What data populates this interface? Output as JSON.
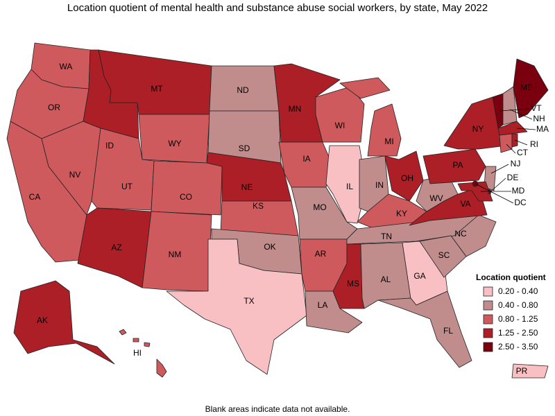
{
  "title": "Location quotient of mental health and substance abuse social workers, by state, May 2022",
  "states": [
    {
      "label": "WA",
      "class": 2
    },
    {
      "label": "OR",
      "class": 2
    },
    {
      "label": "CA",
      "class": 2
    },
    {
      "label": "NV",
      "class": 2
    },
    {
      "label": "ID",
      "class": 3
    },
    {
      "label": "MT",
      "class": 3
    },
    {
      "label": "WY",
      "class": 2
    },
    {
      "label": "UT",
      "class": 2
    },
    {
      "label": "CO",
      "class": 2
    },
    {
      "label": "AZ",
      "class": 3
    },
    {
      "label": "NM",
      "class": 2
    },
    {
      "label": "ND",
      "class": 1
    },
    {
      "label": "SD",
      "class": 1
    },
    {
      "label": "NE",
      "class": 3
    },
    {
      "label": "KS",
      "class": 2
    },
    {
      "label": "OK",
      "class": 1
    },
    {
      "label": "TX",
      "class": 0
    },
    {
      "label": "MN",
      "class": 3
    },
    {
      "label": "IA",
      "class": 2
    },
    {
      "label": "MO",
      "class": 1
    },
    {
      "label": "AR",
      "class": 2
    },
    {
      "label": "LA",
      "class": 1
    },
    {
      "label": "WI",
      "class": 2
    },
    {
      "label": "IL",
      "class": 0
    },
    {
      "label": "MI",
      "class": 2
    },
    {
      "label": "IN",
      "class": 1
    },
    {
      "label": "OH",
      "class": 3
    },
    {
      "label": "KY",
      "class": 2
    },
    {
      "label": "TN",
      "class": 1
    },
    {
      "label": "MS",
      "class": 3
    },
    {
      "label": "AL",
      "class": 1
    },
    {
      "label": "GA",
      "class": 0
    },
    {
      "label": "FL",
      "class": 1
    },
    {
      "label": "NC",
      "class": 1
    },
    {
      "label": "SC",
      "class": 1
    },
    {
      "label": "VA",
      "class": 3
    },
    {
      "label": "WV",
      "class": 1
    },
    {
      "label": "PA",
      "class": 3
    },
    {
      "label": "NY",
      "class": 3
    },
    {
      "label": "VT",
      "class": 4
    },
    {
      "label": "NH",
      "class": 1
    },
    {
      "label": "ME",
      "class": 4
    },
    {
      "label": "MA",
      "class": 3
    },
    {
      "label": "CT",
      "class": 2
    },
    {
      "label": "RI",
      "class": 3
    },
    {
      "label": "NJ",
      "class": 1
    },
    {
      "label": "DE",
      "class": 3
    },
    {
      "label": "MD",
      "class": 3
    },
    {
      "label": "DC",
      "class": 4
    },
    {
      "label": "AK",
      "class": 3
    },
    {
      "label": "HI",
      "class": 2
    },
    {
      "label": "PR",
      "class": 0
    }
  ],
  "legend": {
    "title": "Location quotient",
    "classes": [
      {
        "label": "0.20 - 0.40",
        "color": "#f9c0c4"
      },
      {
        "label": "0.40 - 0.80",
        "color": "#c08c8c"
      },
      {
        "label": "0.80 - 1.25",
        "color": "#cf5a5e"
      },
      {
        "label": "1.25 - 2.50",
        "color": "#ad1f26"
      },
      {
        "label": "2.50 - 3.50",
        "color": "#7a0010"
      }
    ]
  },
  "note": "Blank areas indicate data not available."
}
